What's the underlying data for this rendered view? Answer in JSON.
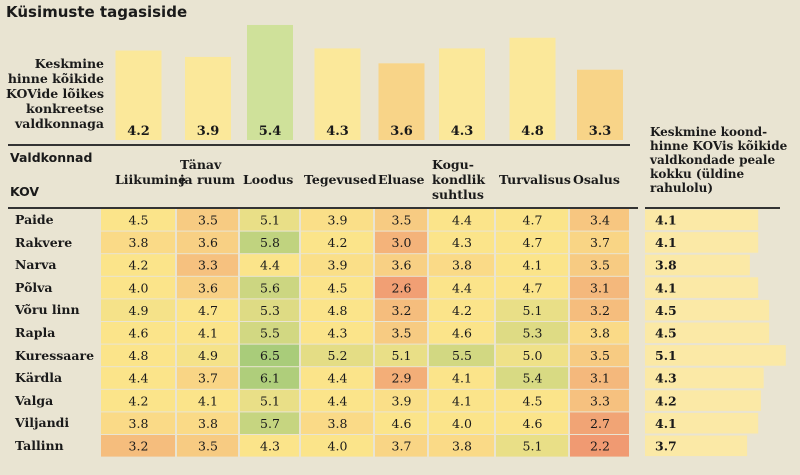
{
  "title": "Küsimuste tagasiside",
  "avg_caption": "Keskmine hinne kõikide KOVide lõikes konkreetse valdkonnaga",
  "kov_caption": "Keskmine koond-hinne KOVis kõikide valdkondade peale kokku (üldine rahulolu)",
  "valdkonnad_label": "Valdkonnad",
  "kov_label": "KOV",
  "chart_data": {
    "type": "heatmap",
    "title": "Küsimuste tagasiside",
    "columns": [
      "Liikumine",
      "Tänav ja ruum",
      "Loodus",
      "Tegevused",
      "Eluase",
      "Kogukondlik suhtlus",
      "Turvalisus",
      "Osalus"
    ],
    "column_labels": [
      [
        "Liikumine"
      ],
      [
        "Tänav",
        "ja ruum"
      ],
      [
        "Loodus"
      ],
      [
        "Tegevused"
      ],
      [
        "Eluase"
      ],
      [
        "Kogu-",
        "kondlik",
        "suhtlus"
      ],
      [
        "Turvalisus"
      ],
      [
        "Osalus"
      ]
    ],
    "column_averages": [
      4.2,
      3.9,
      5.4,
      4.3,
      3.6,
      4.3,
      4.8,
      3.3
    ],
    "rows": [
      "Paide",
      "Rakvere",
      "Narva",
      "Põlva",
      "Võru linn",
      "Rapla",
      "Kuressaare",
      "Kärdla",
      "Valga",
      "Viljandi",
      "Tallinn"
    ],
    "values": [
      [
        4.5,
        3.5,
        5.1,
        3.9,
        3.5,
        4.4,
        4.7,
        3.4
      ],
      [
        3.8,
        3.6,
        5.8,
        4.2,
        3.0,
        4.3,
        4.7,
        3.7
      ],
      [
        4.2,
        3.3,
        4.4,
        3.9,
        3.6,
        3.8,
        4.1,
        3.5
      ],
      [
        4.0,
        3.6,
        5.6,
        4.5,
        2.6,
        4.4,
        4.7,
        3.1
      ],
      [
        4.9,
        4.7,
        5.3,
        4.8,
        3.2,
        4.2,
        5.1,
        3.2
      ],
      [
        4.6,
        4.1,
        5.5,
        4.3,
        3.5,
        4.6,
        5.3,
        3.8
      ],
      [
        4.8,
        4.9,
        6.5,
        5.2,
        5.1,
        5.5,
        5.0,
        3.5
      ],
      [
        4.4,
        3.7,
        6.1,
        4.4,
        2.9,
        4.1,
        5.4,
        3.1
      ],
      [
        4.2,
        4.1,
        5.1,
        4.4,
        3.9,
        4.1,
        4.5,
        3.3
      ],
      [
        3.8,
        3.8,
        5.7,
        3.8,
        4.6,
        4.0,
        4.6,
        2.7
      ],
      [
        3.2,
        3.5,
        4.3,
        4.0,
        3.7,
        3.8,
        5.1,
        2.2
      ]
    ],
    "row_totals": [
      4.1,
      4.1,
      3.8,
      4.1,
      4.5,
      4.5,
      5.1,
      4.3,
      4.2,
      4.1,
      3.7
    ],
    "value_range": [
      2,
      7
    ],
    "colors": {
      "low": "#f09a72",
      "mid": "#fbe48a",
      "high": "#a9cc7a",
      "avg_bar": "#fbe89a",
      "avg_bar_high": "#cfe19a",
      "total_bar": "#fbe9a6"
    }
  }
}
